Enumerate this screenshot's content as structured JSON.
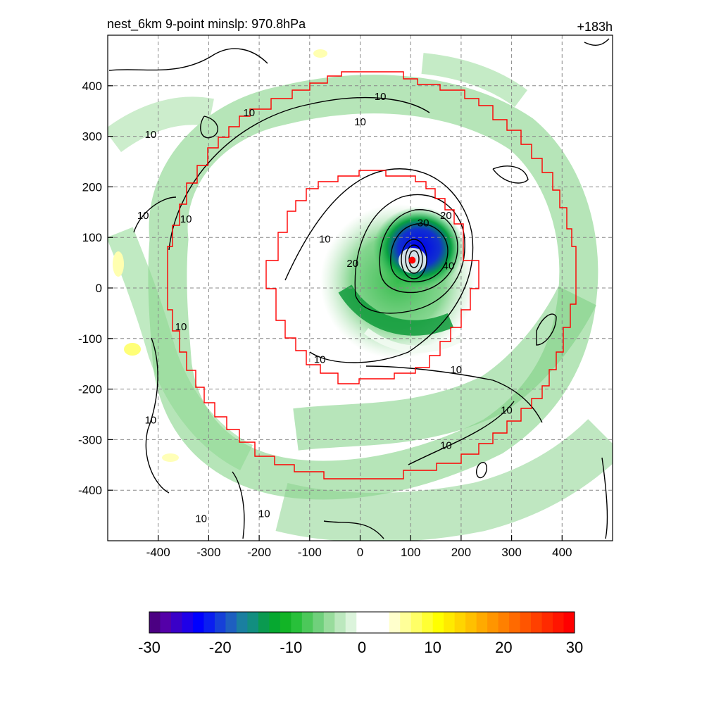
{
  "chart_data": {
    "type": "heatmap",
    "title": "nest_6km  9-point minslp: 970.8hPa",
    "forecast_hour": "+183h",
    "xlim": [
      -500,
      500
    ],
    "ylim": [
      -500,
      500
    ],
    "x_ticks": [
      -400,
      -300,
      -200,
      -100,
      0,
      100,
      200,
      300,
      400
    ],
    "y_ticks": [
      400,
      300,
      200,
      100,
      0,
      -100,
      -200,
      -300,
      -400
    ],
    "grid": true,
    "storm_center": {
      "x": 103,
      "y": 55
    },
    "contour_levels": [
      10,
      20,
      30,
      40
    ],
    "contour_labels": [
      {
        "text": "10",
        "x": -220,
        "y": 348
      },
      {
        "text": "10",
        "x": 0,
        "y": 330
      },
      {
        "text": "10",
        "x": -415,
        "y": 305
      },
      {
        "text": "10",
        "x": 40,
        "y": 380
      },
      {
        "text": "10",
        "x": -430,
        "y": 145
      },
      {
        "text": "10",
        "x": -345,
        "y": 138
      },
      {
        "text": "10",
        "x": -70,
        "y": 98
      },
      {
        "text": "20",
        "x": -15,
        "y": 50
      },
      {
        "text": "30",
        "x": 125,
        "y": 130
      },
      {
        "text": "20",
        "x": 170,
        "y": 145
      },
      {
        "text": "40",
        "x": 175,
        "y": 45
      },
      {
        "text": "10",
        "x": -355,
        "y": -75
      },
      {
        "text": "10",
        "x": -80,
        "y": -140
      },
      {
        "text": "10",
        "x": 190,
        "y": -160
      },
      {
        "text": "10",
        "x": 290,
        "y": -240
      },
      {
        "text": "10",
        "x": -415,
        "y": -260
      },
      {
        "text": "10",
        "x": 170,
        "y": -310
      },
      {
        "text": "10",
        "x": -190,
        "y": -445
      },
      {
        "text": "10",
        "x": -315,
        "y": -455
      }
    ],
    "colorbar": {
      "min": -30,
      "max": 30,
      "ticks": [
        -30,
        -20,
        -10,
        0,
        10,
        20,
        30
      ],
      "colors": [
        "#4b0082",
        "#5400a8",
        "#3a00c8",
        "#1f00e8",
        "#0000ff",
        "#0a1ef0",
        "#1640d8",
        "#1e5fc0",
        "#1a7fa0",
        "#128e80",
        "#0a9a50",
        "#06a830",
        "#12b426",
        "#28c03a",
        "#4cc85a",
        "#70d07c",
        "#98dc9c",
        "#bce8be",
        "#dcf4dc",
        "#ffffff",
        "#ffffff",
        "#ffffff",
        "#ffffcc",
        "#ffff99",
        "#ffff66",
        "#ffff33",
        "#ffff00",
        "#ffea00",
        "#ffd500",
        "#ffc000",
        "#ffaa00",
        "#ff9500",
        "#ff8000",
        "#ff6a00",
        "#ff5500",
        "#ff4000",
        "#ff2a00",
        "#ff1500",
        "#ff0000"
      ]
    }
  }
}
